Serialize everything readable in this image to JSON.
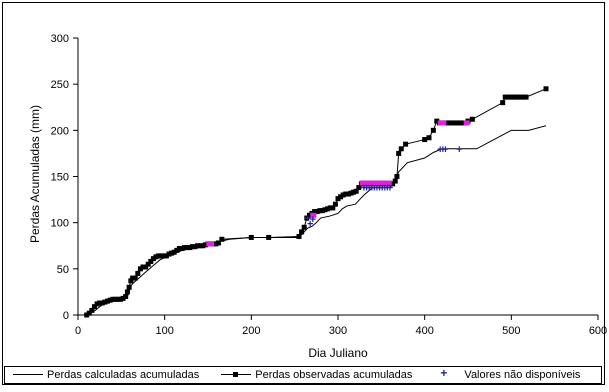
{
  "chart_data": {
    "type": "line",
    "title": "",
    "xlabel": "Dia Juliano",
    "ylabel": "Perdas Acumuladas (mm)",
    "xlim": [
      0,
      600
    ],
    "ylim": [
      0,
      300
    ],
    "x_ticks": [
      "0",
      "100",
      "200",
      "300",
      "400",
      "500",
      "600"
    ],
    "y_ticks": [
      "0",
      "50",
      "100",
      "150",
      "200",
      "250",
      "300"
    ],
    "grid": false,
    "legend_position": "bottom",
    "series": [
      {
        "name": "Perdas calculadas acumuladas",
        "style": "line",
        "color": "#000000",
        "x": [
          10,
          15,
          20,
          25,
          30,
          35,
          40,
          45,
          50,
          55,
          58,
          60,
          63,
          68,
          75,
          80,
          90,
          95,
          100,
          105,
          110,
          120,
          130,
          140,
          150,
          160,
          165,
          175,
          200,
          220,
          255,
          260,
          265,
          270,
          275,
          280,
          290,
          300,
          305,
          310,
          320,
          330,
          340,
          360,
          366,
          370,
          380,
          400,
          410,
          420,
          440,
          460,
          480,
          500,
          520,
          540
        ],
        "y": [
          0,
          2,
          5,
          9,
          12,
          14,
          15,
          15,
          16,
          18,
          22,
          30,
          34,
          38,
          44,
          48,
          56,
          60,
          62,
          64,
          66,
          70,
          72,
          74,
          76,
          78,
          80,
          82,
          84,
          84,
          84,
          89,
          94,
          96,
          100,
          105,
          107,
          110,
          115,
          118,
          120,
          130,
          138,
          138,
          145,
          155,
          165,
          170,
          176,
          180,
          180,
          180,
          190,
          200,
          200,
          205
        ]
      },
      {
        "name": "Perdas observadas acumuladas",
        "style": "line-square",
        "color": "#000000",
        "x": [
          10,
          13,
          16,
          19,
          22,
          25,
          28,
          31,
          34,
          37,
          40,
          43,
          46,
          49,
          52,
          55,
          57,
          59,
          61,
          63,
          66,
          69,
          72,
          75,
          78,
          81,
          84,
          87,
          90,
          93,
          96,
          99,
          102,
          105,
          108,
          111,
          114,
          117,
          120,
          123,
          126,
          129,
          132,
          135,
          138,
          141,
          144,
          147,
          150,
          153,
          156,
          159,
          162,
          166,
          200,
          220,
          255,
          258,
          261,
          264,
          267,
          270,
          273,
          276,
          279,
          282,
          285,
          288,
          291,
          294,
          297,
          300,
          303,
          306,
          309,
          312,
          315,
          318,
          321,
          324,
          327,
          330,
          333,
          336,
          339,
          342,
          345,
          348,
          351,
          354,
          357,
          360,
          363,
          366,
          368,
          370,
          373,
          378,
          400,
          405,
          410,
          414,
          417,
          420,
          423,
          426,
          429,
          432,
          435,
          438,
          441,
          444,
          447,
          450,
          455,
          490,
          493,
          496,
          499,
          502,
          505,
          508,
          511,
          514,
          517,
          540
        ],
        "y": [
          0,
          2,
          5,
          9,
          12,
          13,
          13,
          14,
          15,
          16,
          17,
          17,
          17,
          17,
          18,
          20,
          25,
          30,
          37,
          40,
          40,
          45,
          50,
          52,
          52,
          55,
          58,
          61,
          63,
          64,
          64,
          64,
          64,
          66,
          67,
          68,
          70,
          72,
          72,
          73,
          73,
          73,
          74,
          74,
          75,
          75,
          75,
          76,
          77,
          77,
          77,
          77,
          78,
          82,
          84,
          84,
          85,
          90,
          95,
          105,
          108,
          110,
          112,
          112,
          113,
          113,
          114,
          115,
          116,
          116,
          120,
          126,
          128,
          130,
          131,
          131,
          132,
          133,
          134,
          138,
          142,
          142,
          142,
          142,
          142,
          142,
          142,
          142,
          142,
          142,
          142,
          142,
          142,
          145,
          150,
          175,
          180,
          185,
          190,
          192,
          200,
          210,
          208,
          208,
          208,
          208,
          208,
          208,
          208,
          208,
          208,
          208,
          208,
          210,
          212,
          230,
          236,
          236,
          236,
          236,
          236,
          236,
          236,
          236,
          236,
          245
        ]
      },
      {
        "name": "Valores não disponíveis",
        "style": "marker-plus",
        "color": "#1f1fa8",
        "x": [
          265,
          268,
          271,
          330,
          333,
          336,
          339,
          342,
          345,
          348,
          351,
          354,
          357,
          360,
          418,
          421,
          424,
          440
        ],
        "y": [
          105,
          99,
          104,
          138,
          138,
          138,
          138,
          138,
          138,
          138,
          138,
          138,
          138,
          138,
          180,
          180,
          180,
          180
        ]
      }
    ],
    "highlight_segments": [
      {
        "color": "#e020e0",
        "x": [
          325,
          362
        ],
        "y": 143
      },
      {
        "color": "#e020e0",
        "x": [
          268,
          275
        ],
        "y": 108
      },
      {
        "color": "#e020e0",
        "x": [
          415,
          425
        ],
        "y": 208
      },
      {
        "color": "#e020e0",
        "x": [
          445,
          452
        ],
        "y": 208
      },
      {
        "color": "#e020e0",
        "x": [
          148,
          157
        ],
        "y": 77
      }
    ]
  }
}
